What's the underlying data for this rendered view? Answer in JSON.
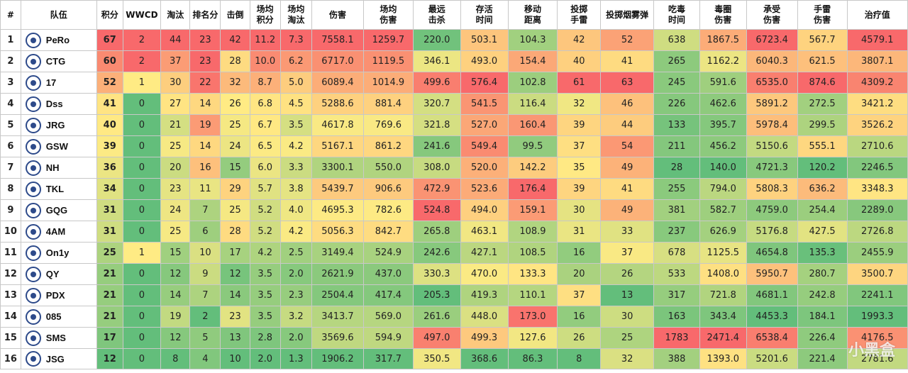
{
  "columns": [
    "#",
    "队伍",
    "积分",
    "WWCD",
    "淘汰",
    "排名分",
    "击倒",
    "场均积分",
    "场均淘汰",
    "伤害",
    "场均伤害",
    "最远击杀",
    "存活时间",
    "移动距离",
    "投掷手雷",
    "投掷烟雾弹",
    "吃毒时间",
    "毒圈伤害",
    "承受伤害",
    "手雷伤害",
    "治疗值"
  ],
  "rows": [
    {
      "rank": "1",
      "team": "PeRo",
      "logo_icon": "pero-logo-icon",
      "values": [
        "67",
        "2",
        "44",
        "23",
        "42",
        "11.2",
        "7.3",
        "7558.1",
        "1259.7",
        "220.0",
        "503.1",
        "104.3",
        "42",
        "52",
        "638",
        "1867.5",
        "6723.4",
        "567.7",
        "4579.1"
      ]
    },
    {
      "rank": "2",
      "team": "CTG",
      "logo_icon": "ctg-logo-icon",
      "values": [
        "60",
        "2",
        "37",
        "23",
        "28",
        "10.0",
        "6.2",
        "6717.0",
        "1119.5",
        "346.1",
        "493.0",
        "154.4",
        "40",
        "41",
        "265",
        "1162.2",
        "6040.3",
        "621.5",
        "3807.1"
      ]
    },
    {
      "rank": "3",
      "team": "17",
      "logo_icon": "17-logo-icon",
      "values": [
        "52",
        "1",
        "30",
        "22",
        "32",
        "8.7",
        "5.0",
        "6089.4",
        "1014.9",
        "499.6",
        "576.4",
        "102.8",
        "61",
        "63",
        "245",
        "591.6",
        "6535.0",
        "874.6",
        "4309.2"
      ]
    },
    {
      "rank": "4",
      "team": "Dss",
      "logo_icon": "dss-logo-icon",
      "values": [
        "41",
        "0",
        "27",
        "14",
        "26",
        "6.8",
        "4.5",
        "5288.6",
        "881.4",
        "320.7",
        "541.5",
        "116.4",
        "32",
        "46",
        "226",
        "462.6",
        "5891.2",
        "272.5",
        "3421.2"
      ]
    },
    {
      "rank": "5",
      "team": "JRG",
      "logo_icon": "jrg-logo-icon",
      "values": [
        "40",
        "0",
        "21",
        "19",
        "25",
        "6.7",
        "3.5",
        "4617.8",
        "769.6",
        "321.8",
        "527.0",
        "160.4",
        "39",
        "44",
        "133",
        "395.7",
        "5978.4",
        "299.5",
        "3526.2"
      ]
    },
    {
      "rank": "6",
      "team": "GSW",
      "logo_icon": "gsw-logo-icon",
      "values": [
        "39",
        "0",
        "25",
        "14",
        "24",
        "6.5",
        "4.2",
        "5167.1",
        "861.2",
        "241.6",
        "549.4",
        "99.5",
        "37",
        "54",
        "211",
        "456.2",
        "5150.6",
        "555.1",
        "2710.6"
      ]
    },
    {
      "rank": "7",
      "team": "NH",
      "logo_icon": "nh-logo-icon",
      "values": [
        "36",
        "0",
        "20",
        "16",
        "15",
        "6.0",
        "3.3",
        "3300.1",
        "550.0",
        "308.0",
        "520.0",
        "142.2",
        "35",
        "49",
        "28",
        "140.0",
        "4721.3",
        "120.2",
        "2246.5"
      ]
    },
    {
      "rank": "8",
      "team": "TKL",
      "logo_icon": "tkl-logo-icon",
      "values": [
        "34",
        "0",
        "23",
        "11",
        "29",
        "5.7",
        "3.8",
        "5439.7",
        "906.6",
        "472.9",
        "523.6",
        "176.4",
        "39",
        "41",
        "255",
        "794.0",
        "5808.3",
        "636.2",
        "3348.3"
      ]
    },
    {
      "rank": "9",
      "team": "GQG",
      "logo_icon": "gqg-logo-icon",
      "values": [
        "31",
        "0",
        "24",
        "7",
        "25",
        "5.2",
        "4.0",
        "4695.3",
        "782.6",
        "524.8",
        "494.0",
        "159.1",
        "30",
        "49",
        "381",
        "582.7",
        "4759.0",
        "254.4",
        "2289.0"
      ]
    },
    {
      "rank": "10",
      "team": "4AM",
      "logo_icon": "4am-logo-icon",
      "values": [
        "31",
        "0",
        "25",
        "6",
        "28",
        "5.2",
        "4.2",
        "5056.3",
        "842.7",
        "265.8",
        "463.1",
        "108.9",
        "31",
        "33",
        "237",
        "626.9",
        "5176.8",
        "427.5",
        "2726.8"
      ]
    },
    {
      "rank": "11",
      "team": "On1y",
      "logo_icon": "on1y-logo-icon",
      "values": [
        "25",
        "1",
        "15",
        "10",
        "17",
        "4.2",
        "2.5",
        "3149.4",
        "524.9",
        "242.6",
        "427.1",
        "108.5",
        "16",
        "37",
        "678",
        "1125.5",
        "4654.8",
        "135.3",
        "2455.9"
      ]
    },
    {
      "rank": "12",
      "team": "QY",
      "logo_icon": "qy-logo-icon",
      "values": [
        "21",
        "0",
        "12",
        "9",
        "12",
        "3.5",
        "2.0",
        "2621.9",
        "437.0",
        "330.3",
        "470.0",
        "133.3",
        "20",
        "26",
        "533",
        "1408.0",
        "5950.7",
        "280.7",
        "3500.7"
      ]
    },
    {
      "rank": "13",
      "team": "PDX",
      "logo_icon": "pdx-logo-icon",
      "values": [
        "21",
        "0",
        "14",
        "7",
        "14",
        "3.5",
        "2.3",
        "2504.4",
        "417.4",
        "205.3",
        "419.3",
        "110.1",
        "37",
        "13",
        "317",
        "721.8",
        "4681.1",
        "242.8",
        "2241.1"
      ]
    },
    {
      "rank": "14",
      "team": "085",
      "logo_icon": "085-logo-icon",
      "values": [
        "21",
        "0",
        "19",
        "2",
        "23",
        "3.5",
        "3.2",
        "3413.7",
        "569.0",
        "261.6",
        "448.0",
        "173.0",
        "16",
        "30",
        "163",
        "343.4",
        "4453.3",
        "184.1",
        "1993.3"
      ]
    },
    {
      "rank": "15",
      "team": "SMS",
      "logo_icon": "sms-logo-icon",
      "values": [
        "17",
        "0",
        "12",
        "5",
        "13",
        "2.8",
        "2.0",
        "3569.6",
        "594.9",
        "497.0",
        "499.3",
        "127.6",
        "26",
        "25",
        "1783",
        "2471.4",
        "6538.4",
        "226.4",
        "4176.5"
      ]
    },
    {
      "rank": "16",
      "team": "JSG",
      "logo_icon": "jsg-logo-icon",
      "values": [
        "12",
        "0",
        "8",
        "4",
        "10",
        "2.0",
        "1.3",
        "1906.2",
        "317.7",
        "350.5",
        "368.6",
        "86.3",
        "8",
        "32",
        "388",
        "1393.0",
        "5201.6",
        "221.4",
        "2781.6"
      ]
    }
  ],
  "colors": {
    "header_bg": "#ffffff",
    "scale_low": "#63be7b",
    "scale_mid": "#ffeb84",
    "scale_high": "#f8696b",
    "border": "#c8c8c8"
  },
  "watermark": {
    "text": "小黑盒",
    "icon": "xiaoheihe-watermark-icon"
  }
}
